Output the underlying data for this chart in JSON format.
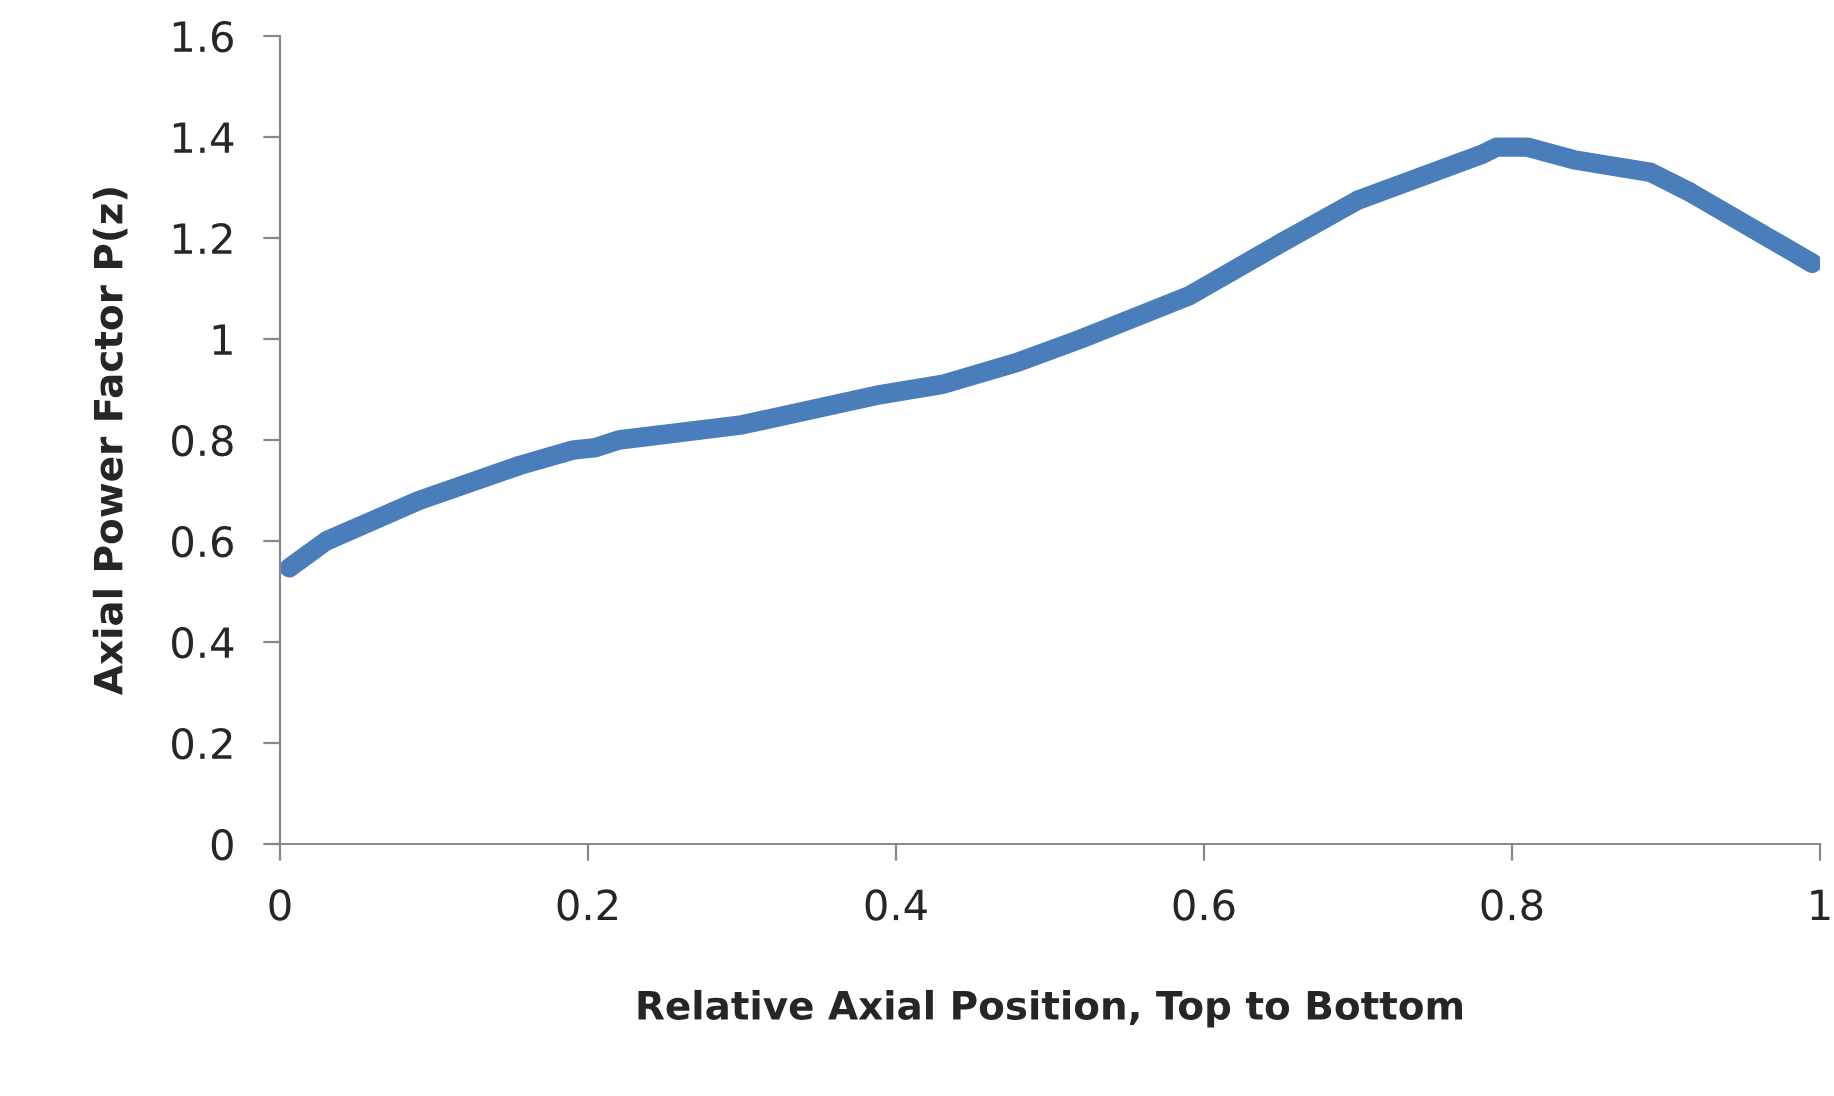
{
  "chart_data": {
    "type": "line",
    "xlabel": "Relative Axial Position, Top to Bottom",
    "ylabel": "Axial Power Factor P(z)",
    "series": [
      {
        "color": "#4a7ebb",
        "x": [
          0.006,
          0.03,
          0.09,
          0.156,
          0.19,
          0.205,
          0.22,
          0.3,
          0.33,
          0.39,
          0.43,
          0.48,
          0.52,
          0.59,
          0.65,
          0.7,
          0.78,
          0.79,
          0.81,
          0.84,
          0.89,
          0.916,
          0.995
        ],
        "values": [
          0.547,
          0.6,
          0.68,
          0.75,
          0.78,
          0.785,
          0.8,
          0.83,
          0.85,
          0.89,
          0.91,
          0.955,
          1.0,
          1.085,
          1.19,
          1.275,
          1.365,
          1.38,
          1.38,
          1.355,
          1.33,
          1.29,
          1.15
        ]
      }
    ],
    "xlim": [
      0,
      1
    ],
    "xticks": [
      0,
      0.2,
      0.4,
      0.6,
      0.8,
      1
    ],
    "ylim": [
      0,
      1.6
    ],
    "yticks": [
      0,
      0.2,
      0.4,
      0.6,
      0.8,
      1,
      1.2,
      1.4,
      1.6
    ],
    "grid": false,
    "legend": false,
    "marker": "none",
    "line_style": "solid"
  }
}
